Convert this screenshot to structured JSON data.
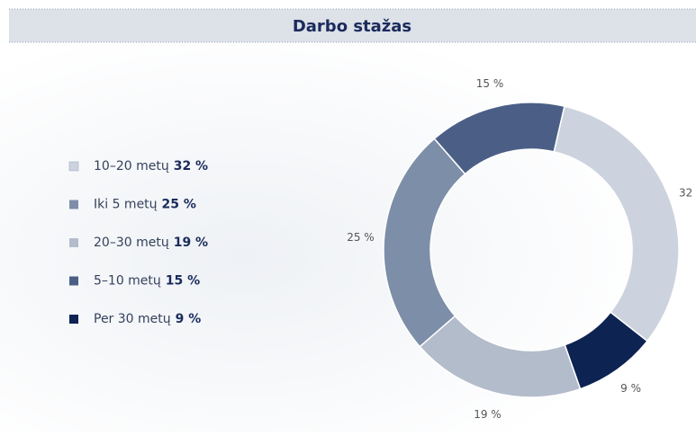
{
  "chart_data": {
    "type": "donut",
    "title": "Darbo stažas",
    "categories": [
      "10–20 metų",
      "Per 30 metų",
      "20–30 metų",
      "Iki 5 metų",
      "5–10 metų"
    ],
    "values": [
      32,
      9,
      19,
      25,
      15
    ],
    "value_labels": [
      "32 %",
      "9 %",
      "19 %",
      "25 %",
      "15 %"
    ],
    "colors": [
      "#cdd3de",
      "#0d2352",
      "#b3bccb",
      "#7d8ea8",
      "#4b5f86"
    ],
    "legend": "left"
  }
}
